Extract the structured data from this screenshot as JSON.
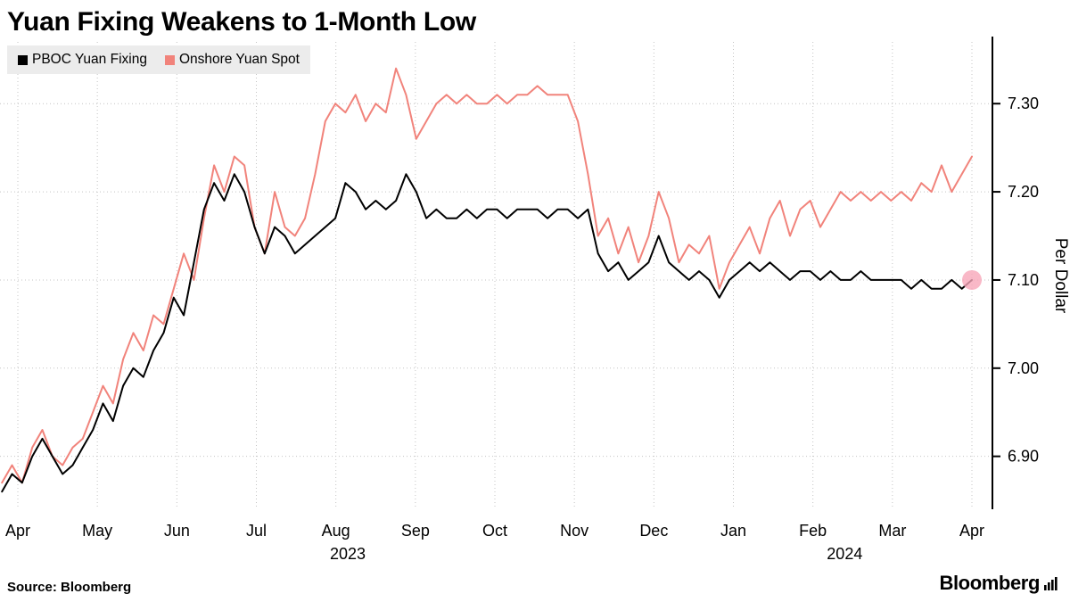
{
  "title": "Yuan Fixing Weakens to 1-Month Low",
  "legend": {
    "items": [
      {
        "label": "PBOC Yuan Fixing",
        "color": "#000000"
      },
      {
        "label": "Onshore Yuan Spot",
        "color": "#F1837B"
      }
    ]
  },
  "footer": {
    "source": "Source: Bloomberg",
    "brand": "Bloomberg"
  },
  "chart_data": {
    "type": "line",
    "title": "Yuan Fixing Weakens to 1-Month Low",
    "ylabel": "Per Dollar",
    "y_ticks": [
      "6.90",
      "7.00",
      "7.10",
      "7.20",
      "7.30"
    ],
    "ylim": [
      6.84,
      7.37
    ],
    "grid": true,
    "legend_position": "top-left",
    "x_months": [
      "Apr",
      "May",
      "Jun",
      "Jul",
      "Aug",
      "Sep",
      "Oct",
      "Nov",
      "Dec",
      "Jan",
      "Feb",
      "Mar",
      "Apr"
    ],
    "x_start_month": -0.2,
    "year_labels": [
      {
        "text": "2023",
        "month_index": 4.15
      },
      {
        "text": "2024",
        "month_index": 10.4
      }
    ],
    "series": [
      {
        "name": "PBOC Yuan Fixing",
        "color": "#000000",
        "values": [
          6.86,
          6.88,
          6.87,
          6.9,
          6.92,
          6.9,
          6.88,
          6.89,
          6.91,
          6.93,
          6.96,
          6.94,
          6.98,
          7.0,
          6.99,
          7.02,
          7.04,
          7.08,
          7.06,
          7.12,
          7.18,
          7.21,
          7.19,
          7.22,
          7.2,
          7.16,
          7.13,
          7.16,
          7.15,
          7.13,
          7.14,
          7.15,
          7.16,
          7.17,
          7.21,
          7.2,
          7.18,
          7.19,
          7.18,
          7.19,
          7.22,
          7.2,
          7.17,
          7.18,
          7.17,
          7.17,
          7.18,
          7.17,
          7.18,
          7.18,
          7.17,
          7.18,
          7.18,
          7.18,
          7.17,
          7.18,
          7.18,
          7.17,
          7.18,
          7.13,
          7.11,
          7.12,
          7.1,
          7.11,
          7.12,
          7.15,
          7.12,
          7.11,
          7.1,
          7.11,
          7.1,
          7.08,
          7.1,
          7.11,
          7.12,
          7.11,
          7.12,
          7.11,
          7.1,
          7.11,
          7.11,
          7.1,
          7.11,
          7.1,
          7.1,
          7.11,
          7.1,
          7.1,
          7.1,
          7.1,
          7.09,
          7.1,
          7.09,
          7.09,
          7.1,
          7.09,
          7.1
        ]
      },
      {
        "name": "Onshore Yuan Spot",
        "color": "#F1837B",
        "values": [
          6.87,
          6.89,
          6.87,
          6.91,
          6.93,
          6.9,
          6.89,
          6.91,
          6.92,
          6.95,
          6.98,
          6.96,
          7.01,
          7.04,
          7.02,
          7.06,
          7.05,
          7.09,
          7.13,
          7.1,
          7.17,
          7.23,
          7.2,
          7.24,
          7.23,
          7.16,
          7.13,
          7.2,
          7.16,
          7.15,
          7.17,
          7.22,
          7.28,
          7.3,
          7.29,
          7.31,
          7.28,
          7.3,
          7.29,
          7.34,
          7.31,
          7.26,
          7.28,
          7.3,
          7.31,
          7.3,
          7.31,
          7.3,
          7.3,
          7.31,
          7.3,
          7.31,
          7.31,
          7.32,
          7.31,
          7.31,
          7.31,
          7.28,
          7.22,
          7.15,
          7.17,
          7.13,
          7.16,
          7.12,
          7.15,
          7.2,
          7.17,
          7.12,
          7.14,
          7.13,
          7.15,
          7.09,
          7.12,
          7.14,
          7.16,
          7.13,
          7.17,
          7.19,
          7.15,
          7.18,
          7.19,
          7.16,
          7.18,
          7.2,
          7.19,
          7.2,
          7.19,
          7.2,
          7.19,
          7.2,
          7.19,
          7.21,
          7.2,
          7.23,
          7.2,
          7.22,
          7.24
        ]
      }
    ],
    "end_marker": {
      "series": "PBOC Yuan Fixing",
      "value": 7.1,
      "color": "#F7A6B9"
    }
  }
}
